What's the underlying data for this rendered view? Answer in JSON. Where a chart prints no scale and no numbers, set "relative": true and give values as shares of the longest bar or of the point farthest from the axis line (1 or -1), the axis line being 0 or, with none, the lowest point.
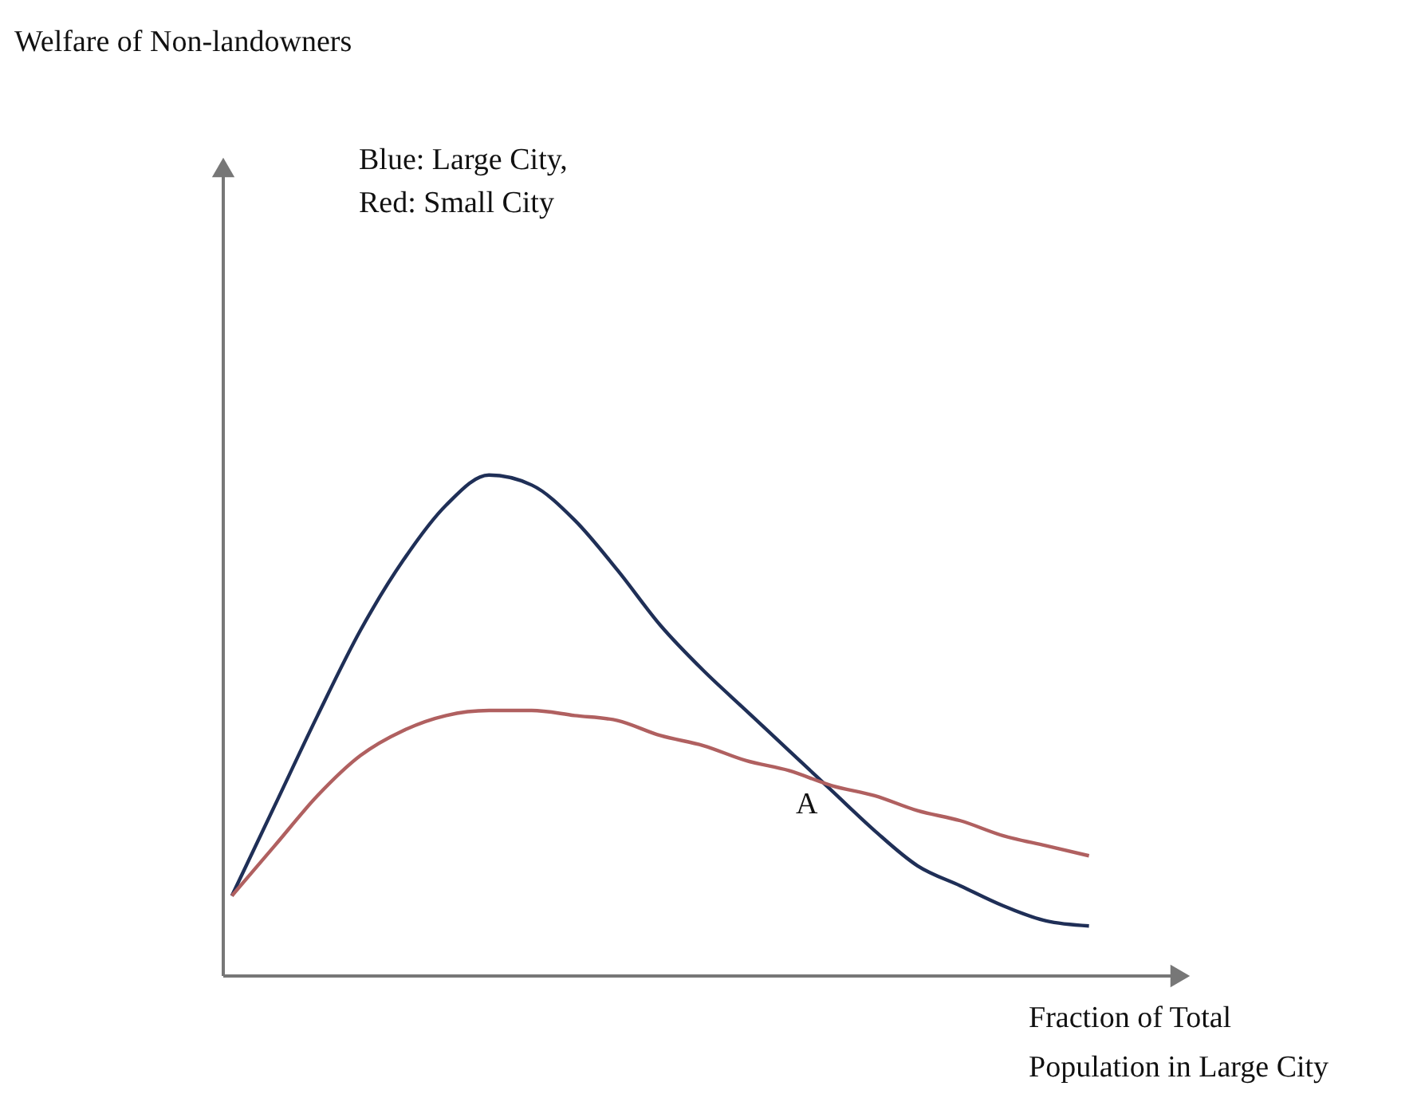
{
  "chart_data": {
    "type": "line",
    "relative": true,
    "xlabel": "Fraction of Total\nPopulation in Large City",
    "categories": [
      null,
      null,
      null,
      null,
      null,
      null,
      null,
      null,
      null,
      null,
      null,
      null,
      null,
      null,
      null,
      null,
      null,
      null,
      null,
      null,
      null
    ],
    "series": [
      {
        "color": "#1f2f57",
        "values": [
          0.16,
          0.34,
          0.52,
          0.69,
          0.83,
          0.94,
          1.0,
          0.98,
          0.91,
          0.81,
          0.7,
          0.61,
          0.53,
          0.45,
          0.37,
          0.29,
          0.22,
          0.18,
          0.14,
          0.11,
          0.1
        ]
      },
      {
        "color": "#b06060",
        "values": [
          0.16,
          0.26,
          0.36,
          0.44,
          0.49,
          0.52,
          0.53,
          0.53,
          0.52,
          0.51,
          0.48,
          0.46,
          0.43,
          0.41,
          0.38,
          0.36,
          0.33,
          0.31,
          0.28,
          0.26,
          0.24
        ]
      }
    ],
    "annotations": [
      "Welfare of Non-landowners",
      "Blue:  Large City,",
      "Red:  Small City",
      "A"
    ]
  }
}
